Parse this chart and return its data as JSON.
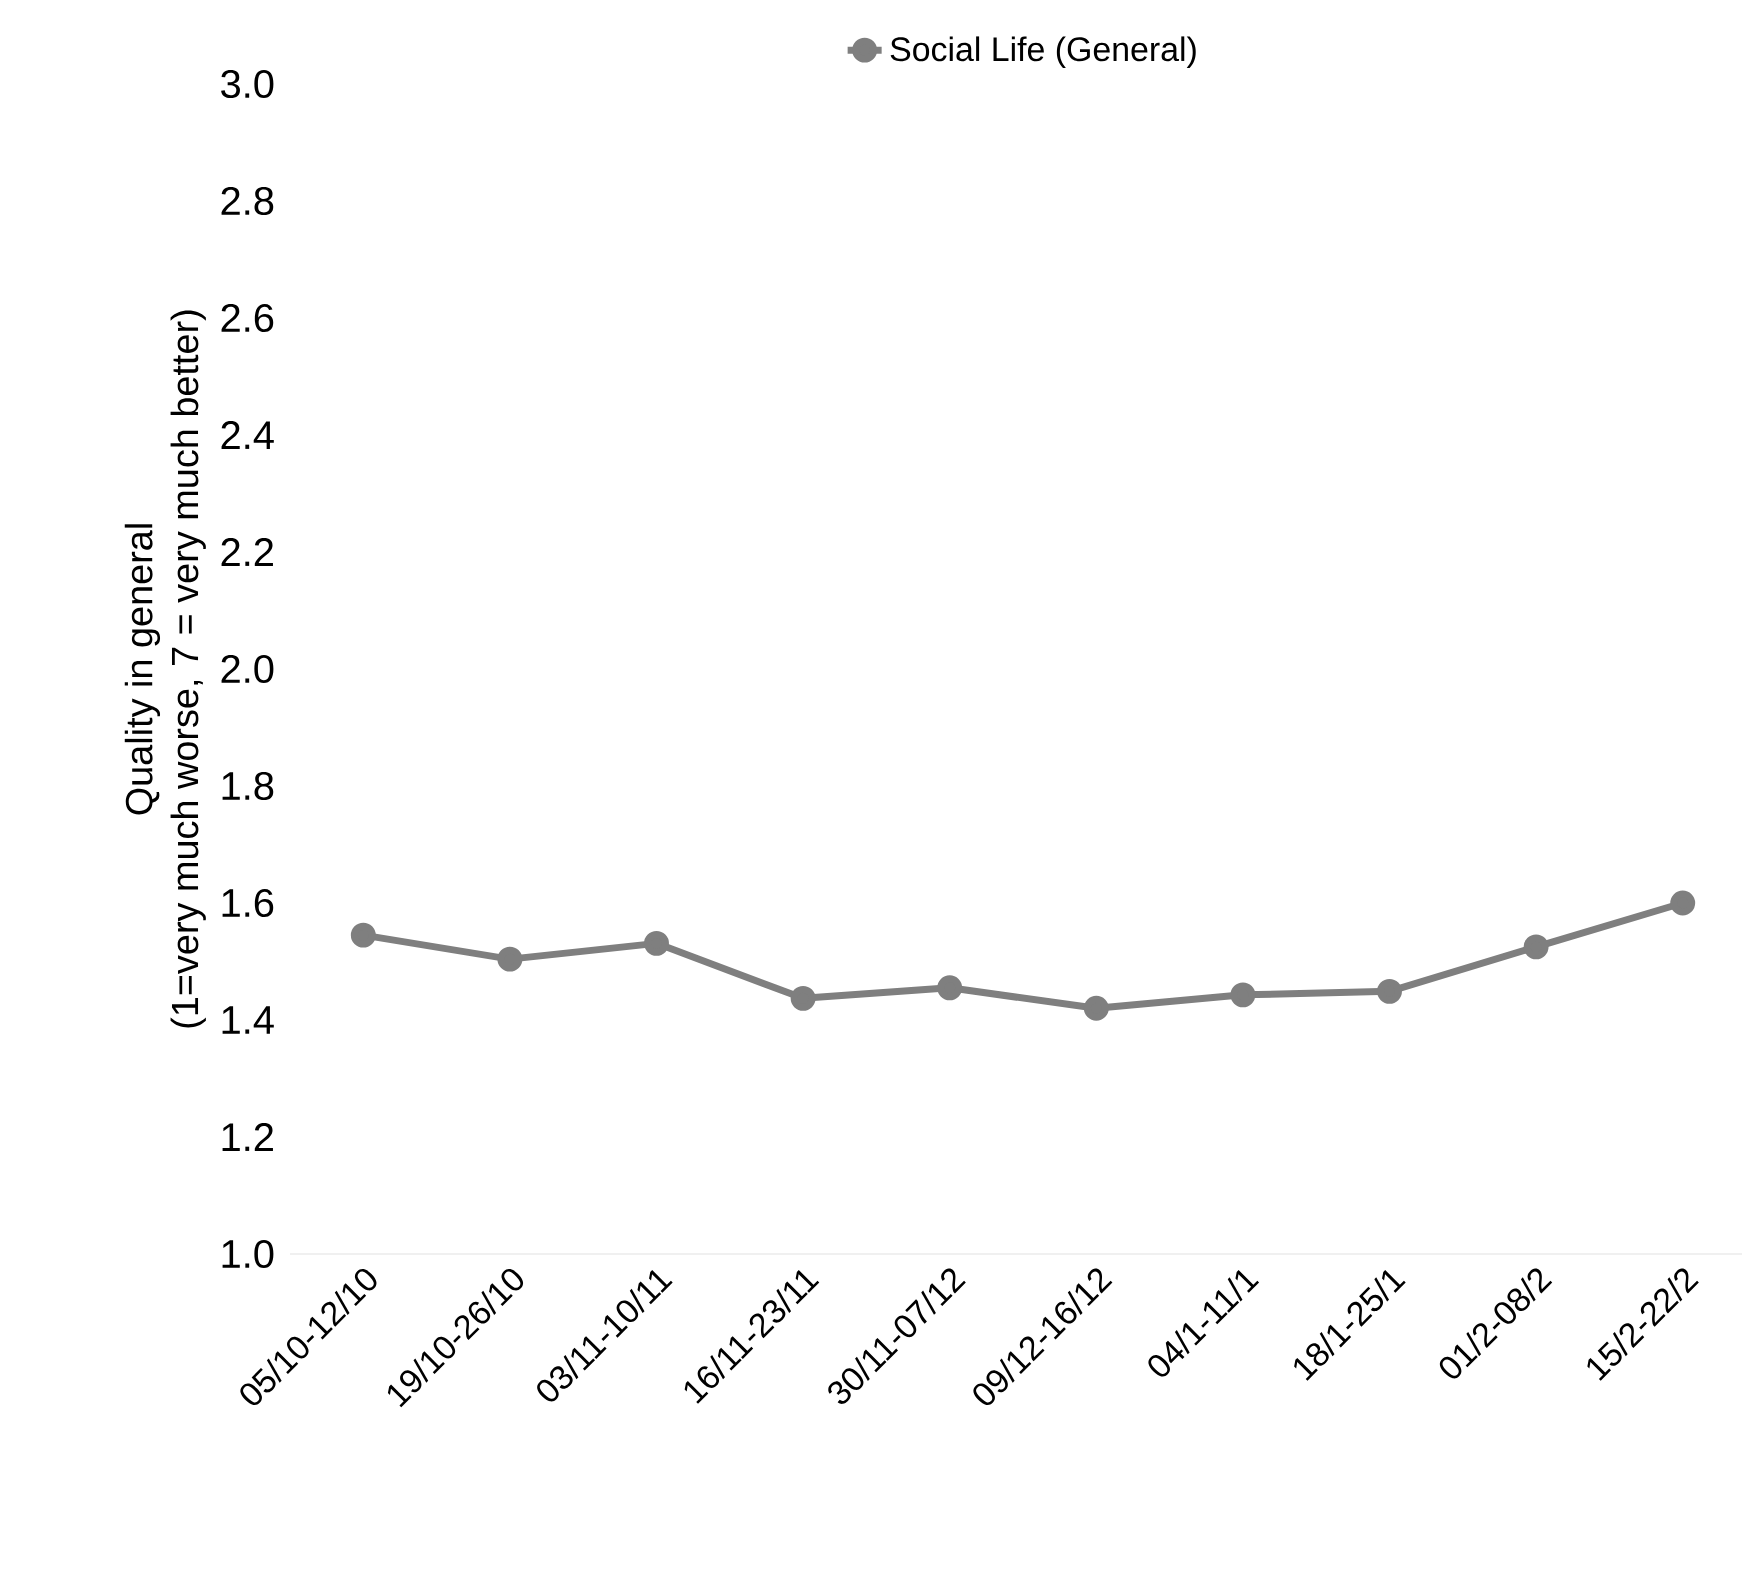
{
  "chart_data": {
    "type": "line",
    "ylabel": "Quality in general\n(1=very much worse, 7 = very much better)",
    "categories": [
      "05/10-12/10",
      "19/10-26/10",
      "03/11-10/11",
      "16/11-23/11",
      "30/11-07/12",
      "09/12-16/12",
      "04/1-11/1",
      "18/1-25/1",
      "01/2-08/2",
      "15/2-22/2"
    ],
    "series": [
      {
        "name": "Social Life (General)",
        "color": "#7f7f7f",
        "values": [
          1.545,
          1.504,
          1.531,
          1.437,
          1.455,
          1.42,
          1.443,
          1.449,
          1.525,
          1.6
        ]
      }
    ],
    "ylim": [
      1.0,
      3.0
    ],
    "yticks": [
      {
        "value": 1.0,
        "label": "1.0"
      },
      {
        "value": 1.2,
        "label": "1.2"
      },
      {
        "value": 1.4,
        "label": "1.4"
      },
      {
        "value": 1.6,
        "label": "1.6"
      },
      {
        "value": 1.8,
        "label": "1.8"
      },
      {
        "value": 2.0,
        "label": "2.0"
      },
      {
        "value": 2.2,
        "label": "2.2"
      },
      {
        "value": 2.4,
        "label": "2.4"
      },
      {
        "value": 2.6,
        "label": "2.6"
      },
      {
        "value": 2.8,
        "label": "2.8"
      },
      {
        "value": 3.0,
        "label": "3.0"
      }
    ],
    "grid": false,
    "legend": "top",
    "marker": "circle",
    "line_style": "solid"
  }
}
